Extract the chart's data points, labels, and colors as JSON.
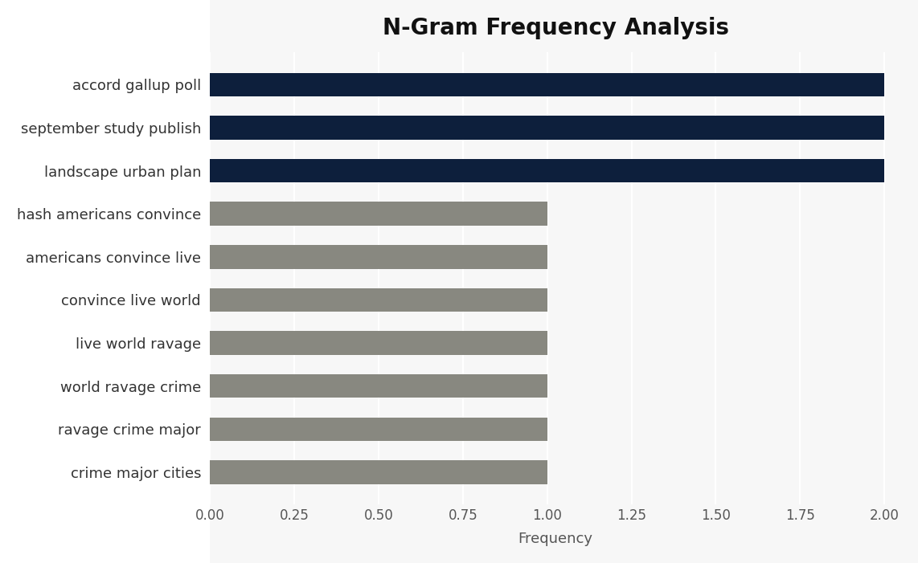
{
  "title": "N-Gram Frequency Analysis",
  "categories": [
    "crime major cities",
    "ravage crime major",
    "world ravage crime",
    "live world ravage",
    "convince live world",
    "americans convince live",
    "hash americans convince",
    "landscape urban plan",
    "september study publish",
    "accord gallup poll"
  ],
  "values": [
    1,
    1,
    1,
    1,
    1,
    1,
    1,
    2,
    2,
    2
  ],
  "colors": [
    "#888880",
    "#888880",
    "#888880",
    "#888880",
    "#888880",
    "#888880",
    "#888880",
    "#0d1f3c",
    "#0d1f3c",
    "#0d1f3c"
  ],
  "xlabel": "Frequency",
  "xlim": [
    0,
    2.05
  ],
  "xticks": [
    0.0,
    0.25,
    0.5,
    0.75,
    1.0,
    1.25,
    1.5,
    1.75,
    2.0
  ],
  "background_color": "#f7f7f7",
  "plot_bg_color": "#f0f0f0",
  "title_fontsize": 20,
  "label_fontsize": 13,
  "tick_fontsize": 12,
  "bar_height": 0.55,
  "left_margin_color": "#ffffff"
}
